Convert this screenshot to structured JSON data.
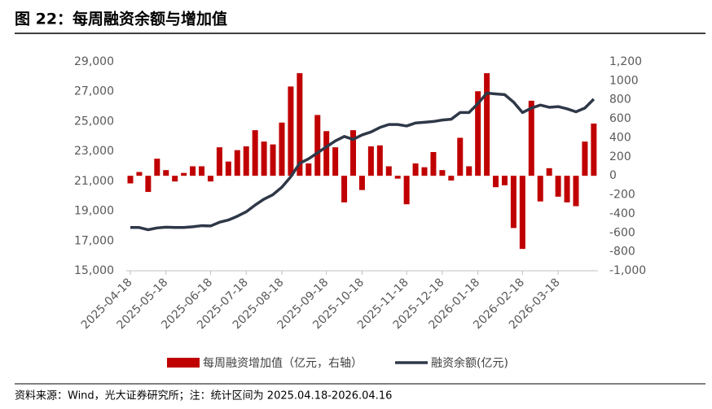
{
  "title": "图 22：每周融资余额与增加值",
  "source": "资料来源：Wind，光大证券研究所；注：统计区间为 2025.04.18-2026.04.16",
  "chart_data": {
    "type": "bar-line",
    "categories": [
      "2025-04-18",
      null,
      null,
      null,
      "2025-05-18",
      null,
      null,
      null,
      null,
      "2025-06-18",
      null,
      null,
      null,
      "2025-07-18",
      null,
      null,
      null,
      "2025-08-18",
      null,
      null,
      null,
      null,
      "2025-09-18",
      null,
      null,
      null,
      "2025-10-18",
      null,
      null,
      null,
      null,
      "2025-11-18",
      null,
      null,
      null,
      "2025-12-18",
      null,
      null,
      null,
      "2026-01-18",
      null,
      null,
      null,
      null,
      "2026-02-18",
      null,
      null,
      null,
      "2026-03-18",
      null,
      null,
      null,
      null
    ],
    "series": [
      {
        "name": "每周融资增加值（亿元，右轴）",
        "kind": "bar",
        "axis": "y2",
        "color": "#c00000",
        "values": [
          -80,
          40,
          -170,
          180,
          60,
          -60,
          30,
          100,
          100,
          -60,
          300,
          150,
          270,
          310,
          480,
          360,
          330,
          560,
          940,
          1080,
          130,
          640,
          470,
          300,
          -280,
          480,
          -150,
          310,
          320,
          100,
          -30,
          -300,
          130,
          90,
          250,
          60,
          -50,
          400,
          100,
          890,
          1080,
          -120,
          -100,
          -550,
          -770,
          790,
          -270,
          80,
          -220,
          -280,
          -320,
          360,
          550
        ]
      },
      {
        "name": "融资余额(亿元)",
        "kind": "line",
        "color": "#2e3848",
        "values": [
          17900,
          17900,
          17750,
          17870,
          17920,
          17900,
          17900,
          17950,
          18020,
          18000,
          18250,
          18400,
          18650,
          18950,
          19400,
          19800,
          20100,
          20600,
          21300,
          22200,
          22500,
          22900,
          23300,
          23700,
          24000,
          23800,
          24100,
          24300,
          24600,
          24800,
          24800,
          24700,
          24900,
          24950,
          25000,
          25100,
          25150,
          25600,
          25600,
          26200,
          26900,
          26850,
          26800,
          26300,
          25600,
          25900,
          26100,
          25950,
          26000,
          25850,
          25650,
          25900,
          26500
        ]
      }
    ],
    "ylim": [
      15000,
      29000
    ],
    "yticks": [
      {
        "value": 15000,
        "label": "15,000"
      },
      {
        "value": 17000,
        "label": "17,000"
      },
      {
        "value": 19000,
        "label": "19,000"
      },
      {
        "value": 21000,
        "label": "21,000"
      },
      {
        "value": 23000,
        "label": "23,000"
      },
      {
        "value": 25000,
        "label": "25,000"
      },
      {
        "value": 27000,
        "label": "27,000"
      },
      {
        "value": 29000,
        "label": "29,000"
      }
    ],
    "y2lim": [
      -1000,
      1200
    ],
    "y2ticks": [
      {
        "value": -1000,
        "label": "-1,000"
      },
      -800,
      -600,
      -400,
      -200,
      0,
      200,
      400,
      600,
      800,
      1000,
      {
        "value": 1200,
        "label": "1,200"
      }
    ]
  }
}
